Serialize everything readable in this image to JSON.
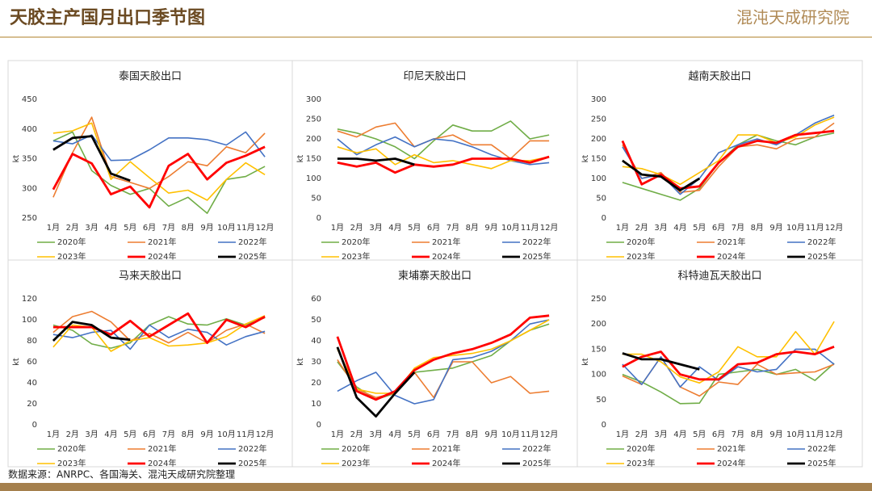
{
  "header": {
    "title": "天胶主产国月出口季节图",
    "logo": "混沌天成研究院"
  },
  "footer": {
    "source": "数据来源：ANRPC、各国海关、混沌天成研究院整理"
  },
  "chart_data": [
    {
      "type": "line",
      "title": "泰国天胶出口",
      "y_label": "kt",
      "categories": [
        "1月",
        "2月",
        "3月",
        "4月",
        "5月",
        "6月",
        "7月",
        "8月",
        "9月",
        "10月",
        "11月",
        "12月"
      ],
      "ylim": [
        250,
        450
      ],
      "yticks": [
        250,
        300,
        350,
        400,
        450
      ],
      "series": [
        {
          "name": "2020年",
          "color": "#70ad47",
          "width": 1.6,
          "values": [
            380,
            395,
            330,
            305,
            290,
            300,
            270,
            285,
            258,
            315,
            320,
            337
          ]
        },
        {
          "name": "2021年",
          "color": "#ed7d31",
          "width": 1.6,
          "values": [
            285,
            360,
            420,
            320,
            310,
            300,
            320,
            345,
            338,
            370,
            360,
            393
          ]
        },
        {
          "name": "2022年",
          "color": "#4472c4",
          "width": 1.6,
          "values": [
            380,
            375,
            390,
            347,
            348,
            365,
            385,
            385,
            382,
            373,
            395,
            353
          ]
        },
        {
          "name": "2023年",
          "color": "#ffc000",
          "width": 1.6,
          "values": [
            393,
            397,
            410,
            315,
            345,
            318,
            292,
            297,
            280,
            315,
            343,
            323
          ]
        },
        {
          "name": "2024年",
          "color": "#ff0000",
          "width": 2.8,
          "values": [
            298,
            358,
            342,
            290,
            303,
            268,
            338,
            358,
            315,
            343,
            355,
            370
          ]
        },
        {
          "name": "2025年",
          "color": "#000000",
          "width": 2.8,
          "values": [
            365,
            385,
            388,
            325,
            313,
            null,
            null,
            null,
            null,
            null,
            null,
            null
          ]
        }
      ]
    },
    {
      "type": "line",
      "title": "印尼天胶出口",
      "y_label": "kt",
      "categories": [
        "1月",
        "2月",
        "3月",
        "4月",
        "5月",
        "6月",
        "7月",
        "8月",
        "9月",
        "10月",
        "11月",
        "12月"
      ],
      "ylim": [
        0,
        300
      ],
      "yticks": [
        0,
        50,
        100,
        150,
        200,
        250,
        300
      ],
      "series": [
        {
          "name": "2020年",
          "color": "#70ad47",
          "width": 1.6,
          "values": [
            225,
            215,
            200,
            180,
            150,
            195,
            235,
            220,
            220,
            245,
            200,
            210
          ]
        },
        {
          "name": "2021年",
          "color": "#ed7d31",
          "width": 1.6,
          "values": [
            220,
            205,
            230,
            240,
            180,
            200,
            210,
            185,
            185,
            150,
            195,
            195
          ]
        },
        {
          "name": "2022年",
          "color": "#4472c4",
          "width": 1.6,
          "values": [
            200,
            160,
            185,
            205,
            180,
            200,
            195,
            180,
            160,
            145,
            135,
            140
          ]
        },
        {
          "name": "2023年",
          "color": "#ffc000",
          "width": 1.6,
          "values": [
            180,
            165,
            175,
            135,
            160,
            140,
            145,
            135,
            125,
            145,
            145,
            155
          ]
        },
        {
          "name": "2024年",
          "color": "#ff0000",
          "width": 2.8,
          "values": [
            140,
            130,
            140,
            115,
            135,
            130,
            135,
            150,
            150,
            150,
            140,
            155
          ]
        },
        {
          "name": "2025年",
          "color": "#000000",
          "width": 2.8,
          "values": [
            150,
            150,
            145,
            150,
            135,
            null,
            null,
            null,
            null,
            null,
            null,
            null
          ]
        }
      ]
    },
    {
      "type": "line",
      "title": "越南天胶出口",
      "y_label": "kt",
      "categories": [
        "1月",
        "2月",
        "3月",
        "4月",
        "5月",
        "6月",
        "7月",
        "8月",
        "9月",
        "10月",
        "11月",
        "12月"
      ],
      "ylim": [
        0,
        300
      ],
      "yticks": [
        0,
        50,
        100,
        150,
        200,
        250,
        300
      ],
      "series": [
        {
          "name": "2020年",
          "color": "#70ad47",
          "width": 1.6,
          "values": [
            90,
            75,
            60,
            45,
            75,
            140,
            185,
            210,
            195,
            185,
            205,
            215
          ]
        },
        {
          "name": "2021年",
          "color": "#ed7d31",
          "width": 1.6,
          "values": [
            185,
            100,
            115,
            65,
            70,
            130,
            180,
            185,
            175,
            200,
            205,
            240
          ]
        },
        {
          "name": "2022年",
          "color": "#4472c4",
          "width": 1.6,
          "values": [
            180,
            100,
            110,
            60,
            100,
            165,
            185,
            200,
            185,
            210,
            240,
            260
          ]
        },
        {
          "name": "2023年",
          "color": "#ffc000",
          "width": 1.6,
          "values": [
            130,
            125,
            110,
            85,
            115,
            145,
            210,
            210,
            190,
            205,
            235,
            255
          ]
        },
        {
          "name": "2024年",
          "color": "#ff0000",
          "width": 2.8,
          "values": [
            195,
            85,
            110,
            75,
            80,
            140,
            180,
            195,
            190,
            210,
            215,
            220
          ]
        },
        {
          "name": "2025年",
          "color": "#000000",
          "width": 2.8,
          "values": [
            145,
            110,
            105,
            70,
            100,
            null,
            null,
            null,
            null,
            null,
            null,
            null
          ]
        }
      ]
    },
    {
      "type": "line",
      "title": "马来天胶出口",
      "y_label": "kt",
      "categories": [
        "1月",
        "2月",
        "3月",
        "4月",
        "5月",
        "6月",
        "7月",
        "8月",
        "9月",
        "10月",
        "11月",
        "12月"
      ],
      "ylim": [
        0,
        120
      ],
      "yticks": [
        0,
        20,
        40,
        60,
        80,
        100,
        120
      ],
      "series": [
        {
          "name": "2020年",
          "color": "#70ad47",
          "width": 1.6,
          "values": [
            95,
            90,
            77,
            73,
            78,
            95,
            103,
            96,
            95,
            101,
            95,
            102
          ]
        },
        {
          "name": "2021年",
          "color": "#ed7d31",
          "width": 1.6,
          "values": [
            88,
            103,
            108,
            98,
            80,
            87,
            78,
            88,
            78,
            90,
            96,
            87
          ]
        },
        {
          "name": "2022年",
          "color": "#4472c4",
          "width": 1.6,
          "values": [
            86,
            83,
            88,
            90,
            72,
            95,
            83,
            91,
            88,
            76,
            84,
            89
          ]
        },
        {
          "name": "2023年",
          "color": "#ffc000",
          "width": 1.6,
          "values": [
            74,
            95,
            93,
            70,
            80,
            83,
            75,
            76,
            78,
            84,
            96,
            104
          ]
        },
        {
          "name": "2024年",
          "color": "#ff0000",
          "width": 2.8,
          "values": [
            93,
            93,
            93,
            86,
            99,
            84,
            95,
            106,
            78,
            100,
            93,
            103
          ]
        },
        {
          "name": "2025年",
          "color": "#000000",
          "width": 2.8,
          "values": [
            80,
            98,
            95,
            83,
            81,
            null,
            null,
            null,
            null,
            null,
            null,
            null
          ]
        }
      ]
    },
    {
      "type": "line",
      "title": "柬埔寨天胶出口",
      "y_label": "kt",
      "categories": [
        "1月",
        "2月",
        "3月",
        "4月",
        "5月",
        "6月",
        "7月",
        "8月",
        "9月",
        "10月",
        "11月",
        "12月"
      ],
      "ylim": [
        0,
        60
      ],
      "yticks": [
        0,
        10,
        20,
        30,
        40,
        50,
        60
      ],
      "series": [
        {
          "name": "2020年",
          "color": "#70ad47",
          "width": 1.6,
          "values": [
            30,
            18,
            12,
            15,
            25,
            26,
            27,
            30,
            33,
            40,
            45,
            48
          ]
        },
        {
          "name": "2021年",
          "color": "#ed7d31",
          "width": 1.6,
          "values": [
            31,
            17,
            13,
            15,
            25,
            13,
            30,
            30,
            20,
            23,
            15,
            16
          ]
        },
        {
          "name": "2022年",
          "color": "#4472c4",
          "width": 1.6,
          "values": [
            16,
            21,
            25,
            14,
            10,
            12,
            31,
            32,
            35,
            40,
            48,
            50
          ]
        },
        {
          "name": "2023年",
          "color": "#ffc000",
          "width": 1.6,
          "values": [
            36,
            17,
            15,
            15,
            27,
            32,
            33,
            34,
            36,
            40,
            45,
            50
          ]
        },
        {
          "name": "2024年",
          "color": "#ff0000",
          "width": 2.8,
          "values": [
            42,
            16,
            12,
            16,
            26,
            31,
            34,
            36,
            39,
            43,
            51,
            52
          ]
        },
        {
          "name": "2025年",
          "color": "#000000",
          "width": 2.8,
          "values": [
            37,
            13,
            4,
            15,
            25,
            null,
            null,
            null,
            null,
            null,
            null,
            null
          ]
        }
      ]
    },
    {
      "type": "line",
      "title": "科特迪瓦天胶出口",
      "y_label": "kt",
      "categories": [
        "1月",
        "2月",
        "3月",
        "4月",
        "5月",
        "6月",
        "7月",
        "8月",
        "9月",
        "10月",
        "11月",
        "12月"
      ],
      "ylim": [
        0,
        250
      ],
      "yticks": [
        0,
        50,
        100,
        150,
        200,
        250
      ],
      "series": [
        {
          "name": "2020年",
          "color": "#70ad47",
          "width": 1.6,
          "values": [
            100,
            85,
            65,
            42,
            43,
            100,
            105,
            110,
            100,
            110,
            88,
            122
          ]
        },
        {
          "name": "2021年",
          "color": "#ed7d31",
          "width": 1.6,
          "values": [
            97,
            80,
            135,
            75,
            57,
            85,
            80,
            120,
            100,
            103,
            105,
            120
          ]
        },
        {
          "name": "2022年",
          "color": "#4472c4",
          "width": 1.6,
          "values": [
            120,
            80,
            135,
            75,
            115,
            88,
            115,
            105,
            110,
            150,
            150,
            120
          ]
        },
        {
          "name": "2023年",
          "color": "#ffc000",
          "width": 1.6,
          "values": [
            140,
            140,
            125,
            95,
            83,
            105,
            155,
            135,
            135,
            185,
            140,
            205
          ]
        },
        {
          "name": "2024年",
          "color": "#ff0000",
          "width": 2.8,
          "values": [
            115,
            135,
            145,
            100,
            90,
            90,
            120,
            123,
            140,
            145,
            140,
            155
          ]
        },
        {
          "name": "2025年",
          "color": "#000000",
          "width": 2.8,
          "values": [
            142,
            130,
            130,
            120,
            110,
            null,
            null,
            null,
            null,
            null,
            null,
            null
          ]
        }
      ]
    }
  ]
}
